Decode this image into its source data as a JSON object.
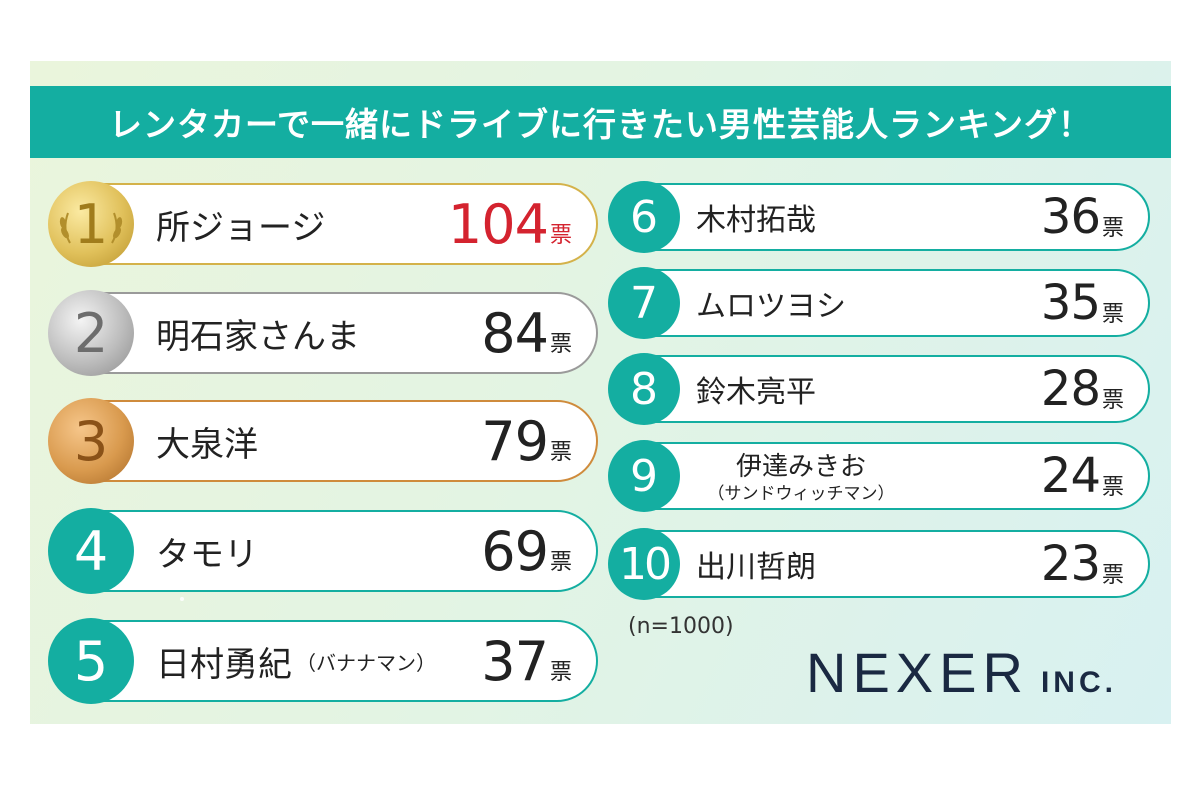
{
  "title": "レンタカーで一緒にドライブに行きたい男性芸能人ランキング！",
  "colors": {
    "teal": "#14aea1",
    "gold": "#d4b24a",
    "silver": "#9a9a9a",
    "bronze": "#cf8b3c",
    "highlight": "#d4232f"
  },
  "chart_data": {
    "type": "table",
    "unit": "票",
    "sample_note": "(n=1000)",
    "rows": [
      {
        "rank": "1",
        "name": "所ジョージ",
        "note": "",
        "votes": "104"
      },
      {
        "rank": "2",
        "name": "明石家さんま",
        "note": "",
        "votes": "84"
      },
      {
        "rank": "3",
        "name": "大泉洋",
        "note": "",
        "votes": "79"
      },
      {
        "rank": "4",
        "name": "タモリ",
        "note": "",
        "votes": "69"
      },
      {
        "rank": "5",
        "name": "日村勇紀",
        "note": "（バナナマン）",
        "votes": "37"
      },
      {
        "rank": "6",
        "name": "木村拓哉",
        "note": "",
        "votes": "36"
      },
      {
        "rank": "7",
        "name": "ムロツヨシ",
        "note": "",
        "votes": "35"
      },
      {
        "rank": "8",
        "name": "鈴木亮平",
        "note": "",
        "votes": "28"
      },
      {
        "rank": "9",
        "name": "伊達みきお",
        "note": "（サンドウィッチマン）",
        "votes": "24"
      },
      {
        "rank": "10",
        "name": "出川哲朗",
        "note": "",
        "votes": "23"
      }
    ]
  },
  "logo": {
    "name": "NEXER",
    "suffix": "INC."
  }
}
